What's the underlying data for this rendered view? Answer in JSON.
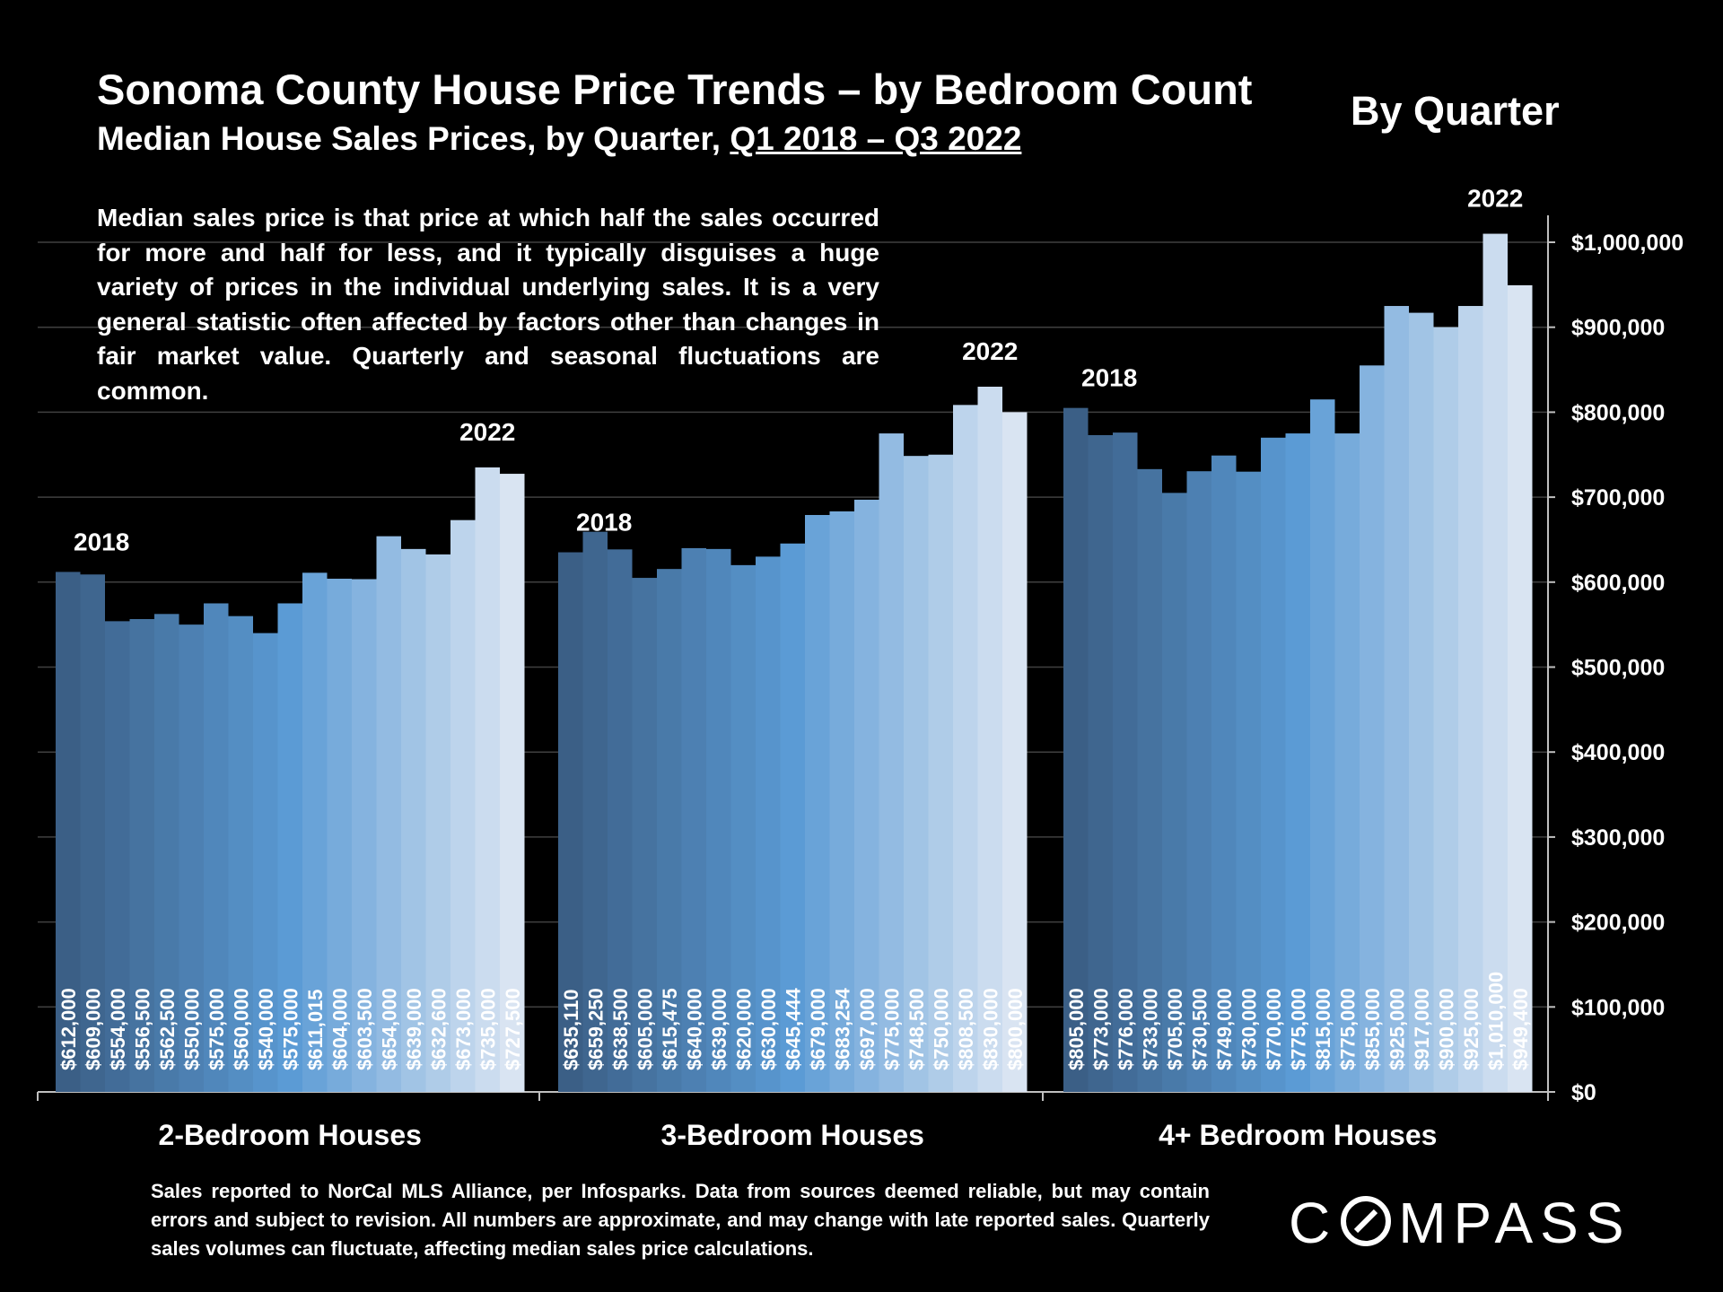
{
  "header": {
    "title": "Sonoma County House Price Trends – by Bedroom Count",
    "subtitle_prefix": "Median House Sales Prices, by Quarter, ",
    "subtitle_range": "Q1 2018 – Q3 2022",
    "by_quarter": "By Quarter"
  },
  "note": "Median sales price is that price at which half the sales occurred for more and half for less, and it typically disguises a huge variety of prices in the individual underlying sales. It is a very general statistic often affected by factors other than changes in fair market value. Quarterly and seasonal fluctuations are common.",
  "footnote": "Sales reported to NorCal MLS Alliance, per Infosparks. Data from sources deemed reliable, but may contain errors and subject to revision. All numbers are approximate, and may change with late reported sales. Quarterly sales volumes can fluctuate, affecting median sales price calculations.",
  "logo": {
    "text_before": "C",
    "text_after": "MPASS"
  },
  "colors": {
    "background": "#000000",
    "bar_start": "#3b5f86",
    "bar_mid": "#5b9bd5",
    "bar_end": "#d9e4f2",
    "grid": "#404040"
  },
  "chart_data": {
    "type": "bar",
    "title": "Sonoma County House Price Trends – by Bedroom Count",
    "ylim": [
      0,
      1000000
    ],
    "yticks": [
      0,
      100000,
      200000,
      300000,
      400000,
      500000,
      600000,
      700000,
      800000,
      900000,
      1000000
    ],
    "ytick_labels": [
      "$0",
      "$100,000",
      "$200,000",
      "$300,000",
      "$400,000",
      "$500,000",
      "$600,000",
      "$700,000",
      "$800,000",
      "$900,000",
      "$1,000,000"
    ],
    "grid": true,
    "groups": [
      {
        "name": "2-Bedroom Houses",
        "start_label": "2018",
        "end_label": "2022",
        "values": [
          612000,
          609000,
          554000,
          556500,
          562500,
          550000,
          575000,
          560000,
          540000,
          575000,
          611015,
          604000,
          603500,
          654000,
          639000,
          632600,
          673000,
          735000,
          727500
        ],
        "labels": [
          "$612,000",
          "$609,000",
          "$554,000",
          "$556,500",
          "$562,500",
          "$550,000",
          "$575,000",
          "$560,000",
          "$540,000",
          "$575,000",
          "$611,015",
          "$604,000",
          "$603,500",
          "$654,000",
          "$639,000",
          "$632,600",
          "$673,000",
          "$735,000",
          "$727,500"
        ]
      },
      {
        "name": "3-Bedroom Houses",
        "start_label": "2018",
        "end_label": "2022",
        "values": [
          635110,
          659250,
          638500,
          605000,
          615475,
          640000,
          639000,
          620000,
          630000,
          645444,
          679000,
          683254,
          697000,
          775000,
          748500,
          750000,
          808500,
          830000,
          800000
        ],
        "labels": [
          "$635,110",
          "$659,250",
          "$638,500",
          "$605,000",
          "$615,475",
          "$640,000",
          "$639,000",
          "$620,000",
          "$630,000",
          "$645,444",
          "$679,000",
          "$683,254",
          "$697,000",
          "$775,000",
          "$748,500",
          "$750,000",
          "$808,500",
          "$830,000",
          "$800,000"
        ]
      },
      {
        "name": "4+ Bedroom Houses",
        "start_label": "2018",
        "end_label": "2022",
        "values": [
          805000,
          773000,
          776000,
          733000,
          705000,
          730500,
          749000,
          730000,
          770000,
          775000,
          815000,
          775000,
          855000,
          925000,
          917000,
          900000,
          925000,
          1010000,
          949400
        ],
        "labels": [
          "$805,000",
          "$773,000",
          "$776,000",
          "$733,000",
          "$705,000",
          "$730,500",
          "$749,000",
          "$730,000",
          "$770,000",
          "$775,000",
          "$815,000",
          "$775,000",
          "$855,000",
          "$925,000",
          "$917,000",
          "$900,000",
          "$925,000",
          "$1,010,000",
          "$949,400"
        ]
      }
    ]
  }
}
